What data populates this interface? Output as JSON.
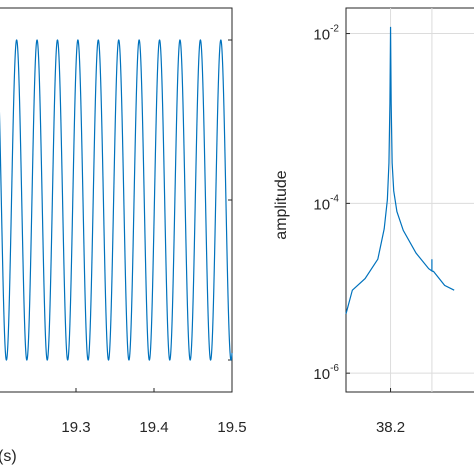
{
  "chart_data": [
    {
      "type": "line",
      "title": "",
      "xlabel": "(s)",
      "ylabel": "",
      "xlim": [
        19.2,
        19.5
      ],
      "ylim": [
        -1.2,
        1.2
      ],
      "xticks": [
        "19.3",
        "19.4",
        "19.5"
      ],
      "grid": false,
      "series": [
        {
          "x_start": 19.2,
          "x_end": 19.5,
          "frequency_hz": 38.2,
          "amplitude": 1.0,
          "color": "#0072BD"
        }
      ]
    },
    {
      "type": "line",
      "title": "",
      "xlabel": "",
      "ylabel": "amplitude",
      "yscale": "log",
      "ylim": [
        6e-07,
        0.02
      ],
      "yticks": [
        {
          "base": "10",
          "exp": "-2"
        },
        {
          "base": "10",
          "exp": "-4"
        },
        {
          "base": "10",
          "exp": "-6"
        }
      ],
      "xticks": [
        "38.2"
      ],
      "grid": true,
      "series": [
        {
          "color": "#0072BD",
          "x": [
            36.8,
            37.0,
            37.4,
            37.8,
            38.0,
            38.1,
            38.15,
            38.18,
            38.2,
            38.22,
            38.25,
            38.3,
            38.4,
            38.6,
            39.0,
            39.4,
            39.5,
            39.5,
            39.5,
            39.55,
            39.9,
            40.2
          ],
          "y": [
            5e-06,
            9.5e-06,
            1.3e-05,
            2.2e-05,
            5e-05,
            0.00011,
            0.0003,
            0.0015,
            0.012,
            0.0015,
            0.0003,
            0.00014,
            8e-05,
            4.8e-05,
            2.6e-05,
            1.7e-05,
            1.6e-05,
            2.2e-05,
            1.6e-05,
            1.58e-05,
            1.08e-05,
            9.5e-06
          ]
        }
      ]
    }
  ]
}
